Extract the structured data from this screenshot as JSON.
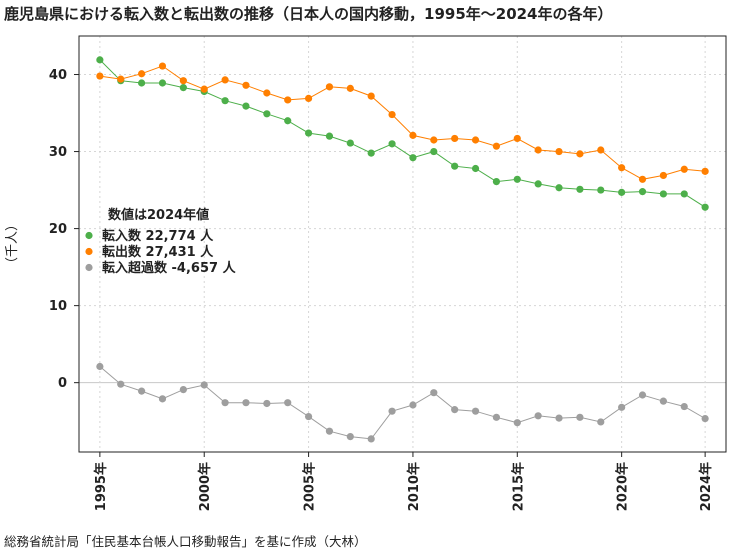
{
  "title": "鹿児島県における転入数と転出数の推移（日本人の国内移動，1995年～2024年の各年）",
  "source": "総務省統計局「住民基本台帳人口移動報告」を基に作成（大林）",
  "chart_data": {
    "type": "line",
    "ylabel": "（千人）",
    "xlabel": "",
    "xlim": [
      1994,
      2025
    ],
    "ylim": [
      -9,
      45
    ],
    "yticks": [
      0,
      10,
      20,
      30,
      40
    ],
    "ytick_labels": [
      "0",
      "10",
      "20",
      "30",
      "40"
    ],
    "xticks": [
      1995,
      2000,
      2005,
      2010,
      2015,
      2020,
      2024
    ],
    "xtick_labels": [
      "1995年",
      "2000年",
      "2005年",
      "2010年",
      "2015年",
      "2020年",
      "2024年"
    ],
    "grid": true,
    "legend": {
      "placement": "middle-left",
      "title": "数値は2024年値",
      "entries": [
        "転入数 22,774 人",
        "転出数 27,431 人",
        "転入超過数 -4,657 人"
      ]
    },
    "x": [
      1995,
      1996,
      1997,
      1998,
      1999,
      2000,
      2001,
      2002,
      2003,
      2004,
      2005,
      2006,
      2007,
      2008,
      2009,
      2010,
      2011,
      2012,
      2013,
      2014,
      2015,
      2016,
      2017,
      2018,
      2019,
      2020,
      2021,
      2022,
      2023,
      2024
    ],
    "series": [
      {
        "name": "転入数",
        "color": "#4daf4a",
        "values": [
          41.9,
          39.2,
          38.9,
          38.9,
          38.3,
          37.8,
          36.6,
          35.9,
          34.9,
          34.0,
          32.4,
          32.0,
          31.1,
          29.8,
          31.0,
          29.2,
          30.0,
          28.1,
          27.8,
          26.1,
          26.4,
          25.8,
          25.3,
          25.1,
          25.0,
          24.7,
          24.8,
          24.5,
          24.5,
          22.774
        ]
      },
      {
        "name": "転出数",
        "color": "#ff7f00",
        "values": [
          39.8,
          39.4,
          40.1,
          41.1,
          39.2,
          38.1,
          39.3,
          38.6,
          37.6,
          36.7,
          36.9,
          38.4,
          38.2,
          37.2,
          34.8,
          32.1,
          31.5,
          31.7,
          31.5,
          30.7,
          31.7,
          30.2,
          30.0,
          29.7,
          30.2,
          27.9,
          26.4,
          26.9,
          27.7,
          27.431
        ]
      },
      {
        "name": "転入超過数",
        "color": "#9e9e9e",
        "values": [
          2.1,
          -0.2,
          -1.1,
          -2.1,
          -0.9,
          -0.3,
          -2.6,
          -2.6,
          -2.7,
          -2.6,
          -4.4,
          -6.3,
          -7.0,
          -7.3,
          -3.7,
          -2.9,
          -1.3,
          -3.5,
          -3.7,
          -4.5,
          -5.2,
          -4.3,
          -4.6,
          -4.5,
          -5.1,
          -3.2,
          -1.6,
          -2.4,
          -3.1,
          -4.657
        ]
      }
    ]
  }
}
